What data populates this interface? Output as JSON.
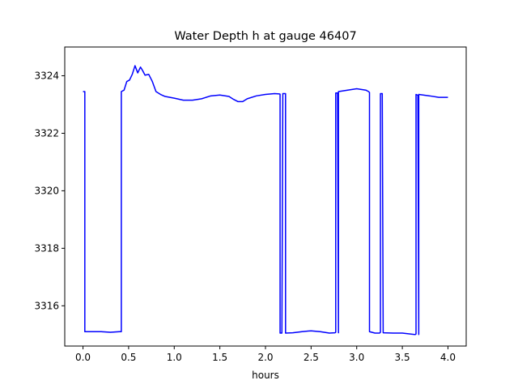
{
  "chart_data": {
    "type": "line",
    "title": "Water Depth h at gauge 46407",
    "xlabel": "hours",
    "ylabel": "",
    "xlim": [
      -0.2,
      4.2
    ],
    "ylim": [
      3314.6,
      3325.0
    ],
    "xticks": [
      0.0,
      0.5,
      1.0,
      1.5,
      2.0,
      2.5,
      3.0,
      3.5,
      4.0
    ],
    "xtick_labels": [
      "0.0",
      "0.5",
      "1.0",
      "1.5",
      "2.0",
      "2.5",
      "3.0",
      "3.5",
      "4.0"
    ],
    "yticks": [
      3316,
      3318,
      3320,
      3322,
      3324
    ],
    "ytick_labels": [
      "3316",
      "3318",
      "3320",
      "3322",
      "3324"
    ],
    "grid": false,
    "series": [
      {
        "color": "#0000ff",
        "x": [
          0.0,
          0.02,
          0.02,
          0.1,
          0.2,
          0.3,
          0.4,
          0.42,
          0.42,
          0.45,
          0.48,
          0.51,
          0.54,
          0.57,
          0.6,
          0.63,
          0.65,
          0.68,
          0.72,
          0.76,
          0.8,
          0.85,
          0.9,
          1.0,
          1.1,
          1.2,
          1.3,
          1.4,
          1.5,
          1.6,
          1.65,
          1.7,
          1.75,
          1.8,
          1.9,
          2.0,
          2.1,
          2.15,
          2.16,
          2.16,
          2.18,
          2.19,
          2.19,
          2.22,
          2.22,
          2.3,
          2.4,
          2.5,
          2.6,
          2.7,
          2.76,
          2.77,
          2.77,
          2.79,
          2.8,
          2.8,
          2.9,
          3.0,
          3.1,
          3.13,
          3.14,
          3.14,
          3.2,
          3.25,
          3.26,
          3.26,
          3.28,
          3.29,
          3.29,
          3.4,
          3.5,
          3.64,
          3.65,
          3.65,
          3.67,
          3.68,
          3.68,
          3.8,
          3.9,
          4.0
        ],
        "y": [
          3323.45,
          3323.45,
          3315.1,
          3315.1,
          3315.1,
          3315.08,
          3315.1,
          3315.1,
          3323.45,
          3323.5,
          3323.8,
          3323.85,
          3324.05,
          3324.35,
          3324.1,
          3324.3,
          3324.2,
          3324.02,
          3324.05,
          3323.8,
          3323.45,
          3323.35,
          3323.28,
          3323.22,
          3323.15,
          3323.15,
          3323.2,
          3323.3,
          3323.33,
          3323.28,
          3323.18,
          3323.1,
          3323.1,
          3323.2,
          3323.3,
          3323.35,
          3323.38,
          3323.37,
          3323.36,
          3315.05,
          3315.05,
          3323.38,
          3323.38,
          3323.38,
          3315.05,
          3315.06,
          3315.1,
          3315.13,
          3315.1,
          3315.05,
          3315.06,
          3315.08,
          3323.4,
          3323.4,
          3315.06,
          3323.45,
          3323.5,
          3323.55,
          3323.5,
          3323.45,
          3323.42,
          3315.1,
          3315.05,
          3315.05,
          3315.08,
          3323.38,
          3323.38,
          3315.06,
          3315.06,
          3315.05,
          3315.05,
          3315.0,
          3315.02,
          3323.35,
          3323.32,
          3315.0,
          3323.35,
          3323.3,
          3323.25,
          3323.25
        ]
      }
    ]
  }
}
